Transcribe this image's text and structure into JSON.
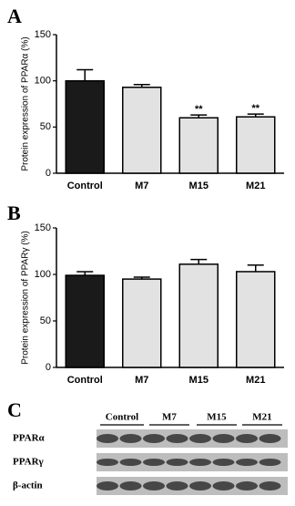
{
  "chart_data": [
    {
      "type": "bar",
      "panel": "A",
      "y_label": "Protein expression of PPARα (%)",
      "categories": [
        "Control",
        "M7",
        "M15",
        "M21"
      ],
      "values": [
        100,
        93,
        60,
        61
      ],
      "errors": [
        12,
        3,
        3,
        3
      ],
      "colors": [
        "#1a1a1a",
        "#e2e2e2",
        "#e2e2e2",
        "#e2e2e2"
      ],
      "ylim": [
        0,
        150
      ],
      "yticks": [
        0,
        50,
        100,
        150
      ],
      "annotations": [
        {
          "text": "**",
          "x": "M15"
        },
        {
          "text": "**",
          "x": "M21"
        }
      ]
    },
    {
      "type": "bar",
      "panel": "B",
      "y_label": "Protein expression of PPARγ (%)",
      "categories": [
        "Control",
        "M7",
        "M15",
        "M21"
      ],
      "values": [
        99,
        95,
        111,
        103
      ],
      "errors": [
        4,
        2,
        5,
        7
      ],
      "colors": [
        "#1a1a1a",
        "#e2e2e2",
        "#e2e2e2",
        "#e2e2e2"
      ],
      "ylim": [
        0,
        150
      ],
      "yticks": [
        0,
        50,
        100,
        150
      ]
    }
  ],
  "blot": {
    "panel": "C",
    "columns": [
      "Control",
      "M7",
      "M15",
      "M21"
    ],
    "rows": [
      "PPARα",
      "PPARγ",
      "β-actin"
    ]
  }
}
